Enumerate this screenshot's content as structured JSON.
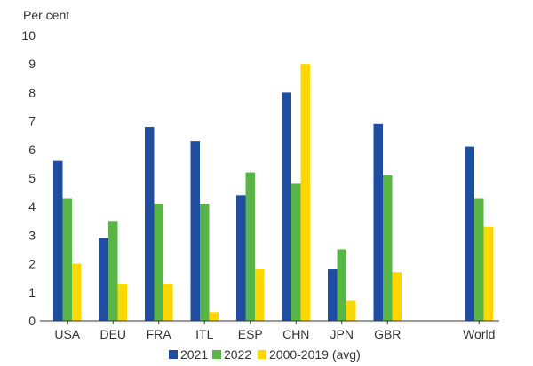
{
  "chart_data": {
    "type": "bar",
    "unit_label": "Per cent",
    "categories": [
      "USA",
      "DEU",
      "FRA",
      "ITL",
      "ESP",
      "CHN",
      "JPN",
      "GBR",
      "",
      "World"
    ],
    "series": [
      {
        "name": "2021",
        "color": "#1f4ea1",
        "values": [
          5.6,
          2.9,
          6.8,
          6.3,
          4.4,
          8.0,
          1.8,
          6.9,
          null,
          6.1
        ]
      },
      {
        "name": "2022",
        "color": "#5ab547",
        "values": [
          4.3,
          3.5,
          4.1,
          4.1,
          5.2,
          4.8,
          2.5,
          5.1,
          null,
          4.3
        ]
      },
      {
        "name": "2000-2019 (avg)",
        "color": "#ffd700",
        "values": [
          2.0,
          1.3,
          1.3,
          0.3,
          1.8,
          9.0,
          0.7,
          1.7,
          null,
          3.3
        ]
      }
    ],
    "ylim": [
      0,
      10
    ],
    "yticks": [
      "0",
      "1",
      "2",
      "3",
      "4",
      "5",
      "6",
      "7",
      "8",
      "9",
      "10"
    ],
    "grid": false,
    "legend_position": "bottom"
  }
}
